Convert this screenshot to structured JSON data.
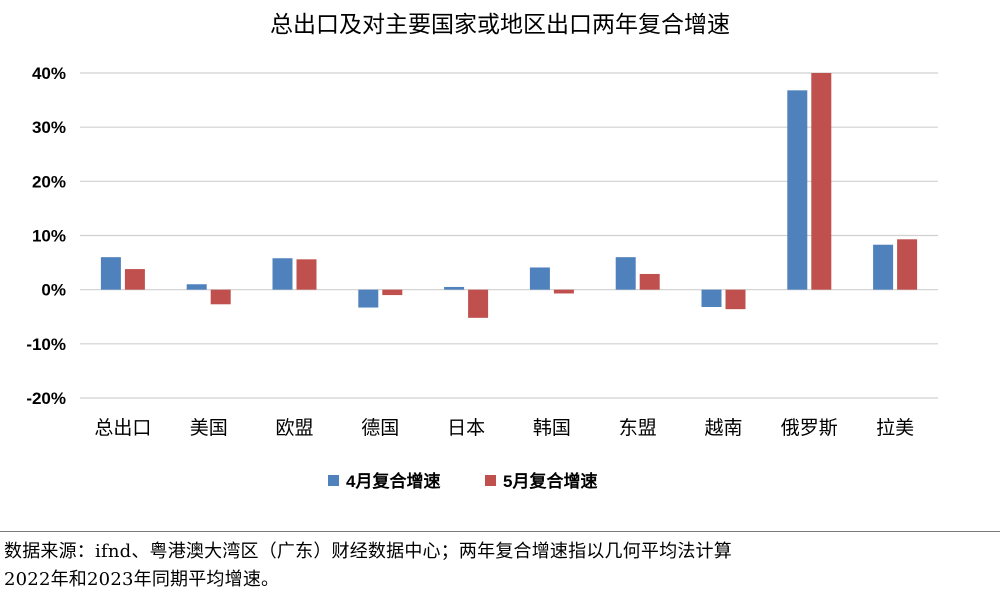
{
  "chart_data": {
    "type": "bar",
    "title": "总出口及对主要国家或地区出口两年复合增速",
    "categories": [
      "总出口",
      "美国",
      "欧盟",
      "德国",
      "日本",
      "韩国",
      "东盟",
      "越南",
      "俄罗斯",
      "拉美"
    ],
    "series": [
      {
        "name": "4月复合增速",
        "color": "#4f81bd",
        "values": [
          6.0,
          1.0,
          5.8,
          -3.3,
          0.5,
          4.1,
          6.0,
          -3.2,
          36.8,
          8.3
        ]
      },
      {
        "name": "5月复合增速",
        "color": "#c0504d",
        "values": [
          3.8,
          -2.7,
          5.6,
          -1.0,
          -5.2,
          -0.7,
          2.9,
          -3.6,
          40.0,
          9.3
        ]
      }
    ],
    "yticks": [
      "40%",
      "30%",
      "20%",
      "10%",
      "0%",
      "-10%",
      "-20%"
    ],
    "ylim": [
      -20,
      40
    ],
    "xlabel": "",
    "ylabel": "",
    "grid": true,
    "legend": "bottom-center"
  },
  "footnote": {
    "line1": "数据来源：ifnd、粤港澳大湾区（广东）财经数据中心；两年复合增速指以几何平均法计算",
    "line2": "2022年和2023年同期平均增速。"
  }
}
